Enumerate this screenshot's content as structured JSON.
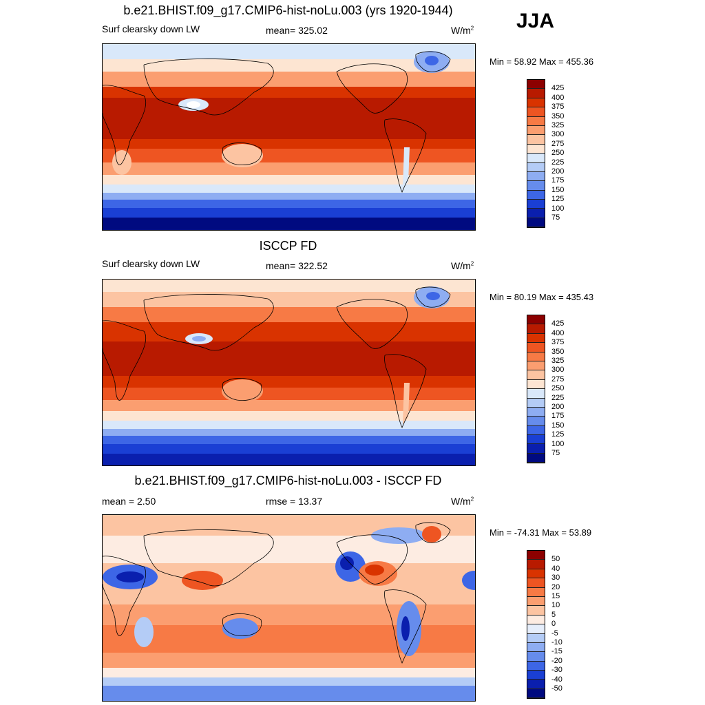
{
  "season": "JJA",
  "units_label": "W/m",
  "units_sup": "2",
  "panels": [
    {
      "title": "b.e21.BHIST.f09_g17.CMIP6-hist-noLu.003 (yrs 1920-1944)",
      "left_label": "Surf clearsky down LW",
      "center_label": "mean= 325.02",
      "minmax": "Min =  58.92 Max = 455.36"
    },
    {
      "title": "ISCCP FD",
      "left_label": "Surf clearsky down LW",
      "center_label": "mean= 322.52",
      "minmax": "Min =  80.19 Max = 435.43"
    },
    {
      "title": "b.e21.BHIST.f09_g17.CMIP6-hist-noLu.003 - ISCCP FD",
      "left_label": "mean =   2.50",
      "center_label": "rmse =  13.37",
      "minmax": "Min = -74.31 Max =  53.89"
    }
  ],
  "colorbars": {
    "absolute": {
      "labels": [
        "425",
        "400",
        "375",
        "350",
        "325",
        "300",
        "275",
        "250",
        "225",
        "200",
        "175",
        "150",
        "125",
        "100",
        "75"
      ],
      "colors": [
        "#8c0000",
        "#b81a00",
        "#d93300",
        "#ee5522",
        "#f77a45",
        "#fb9e70",
        "#fcc4a2",
        "#fde5d2",
        "#d9e8fa",
        "#b4ccf6",
        "#8eadf2",
        "#668cec",
        "#3d66e6",
        "#1a3fd4",
        "#0a1fae",
        "#000a80"
      ]
    },
    "difference": {
      "labels": [
        "50",
        "40",
        "30",
        "20",
        "15",
        "10",
        "5",
        "0",
        "-5",
        "-10",
        "-15",
        "-20",
        "-30",
        "-40",
        "-50"
      ],
      "colors": [
        "#8c0000",
        "#b81a00",
        "#d93300",
        "#ee5522",
        "#f77a45",
        "#fb9e70",
        "#fcc4a2",
        "#fdece2",
        "#e6eefb",
        "#b4ccf6",
        "#8eadf2",
        "#668cec",
        "#3d66e6",
        "#1a3fd4",
        "#0a1fae",
        "#000a80"
      ]
    }
  }
}
